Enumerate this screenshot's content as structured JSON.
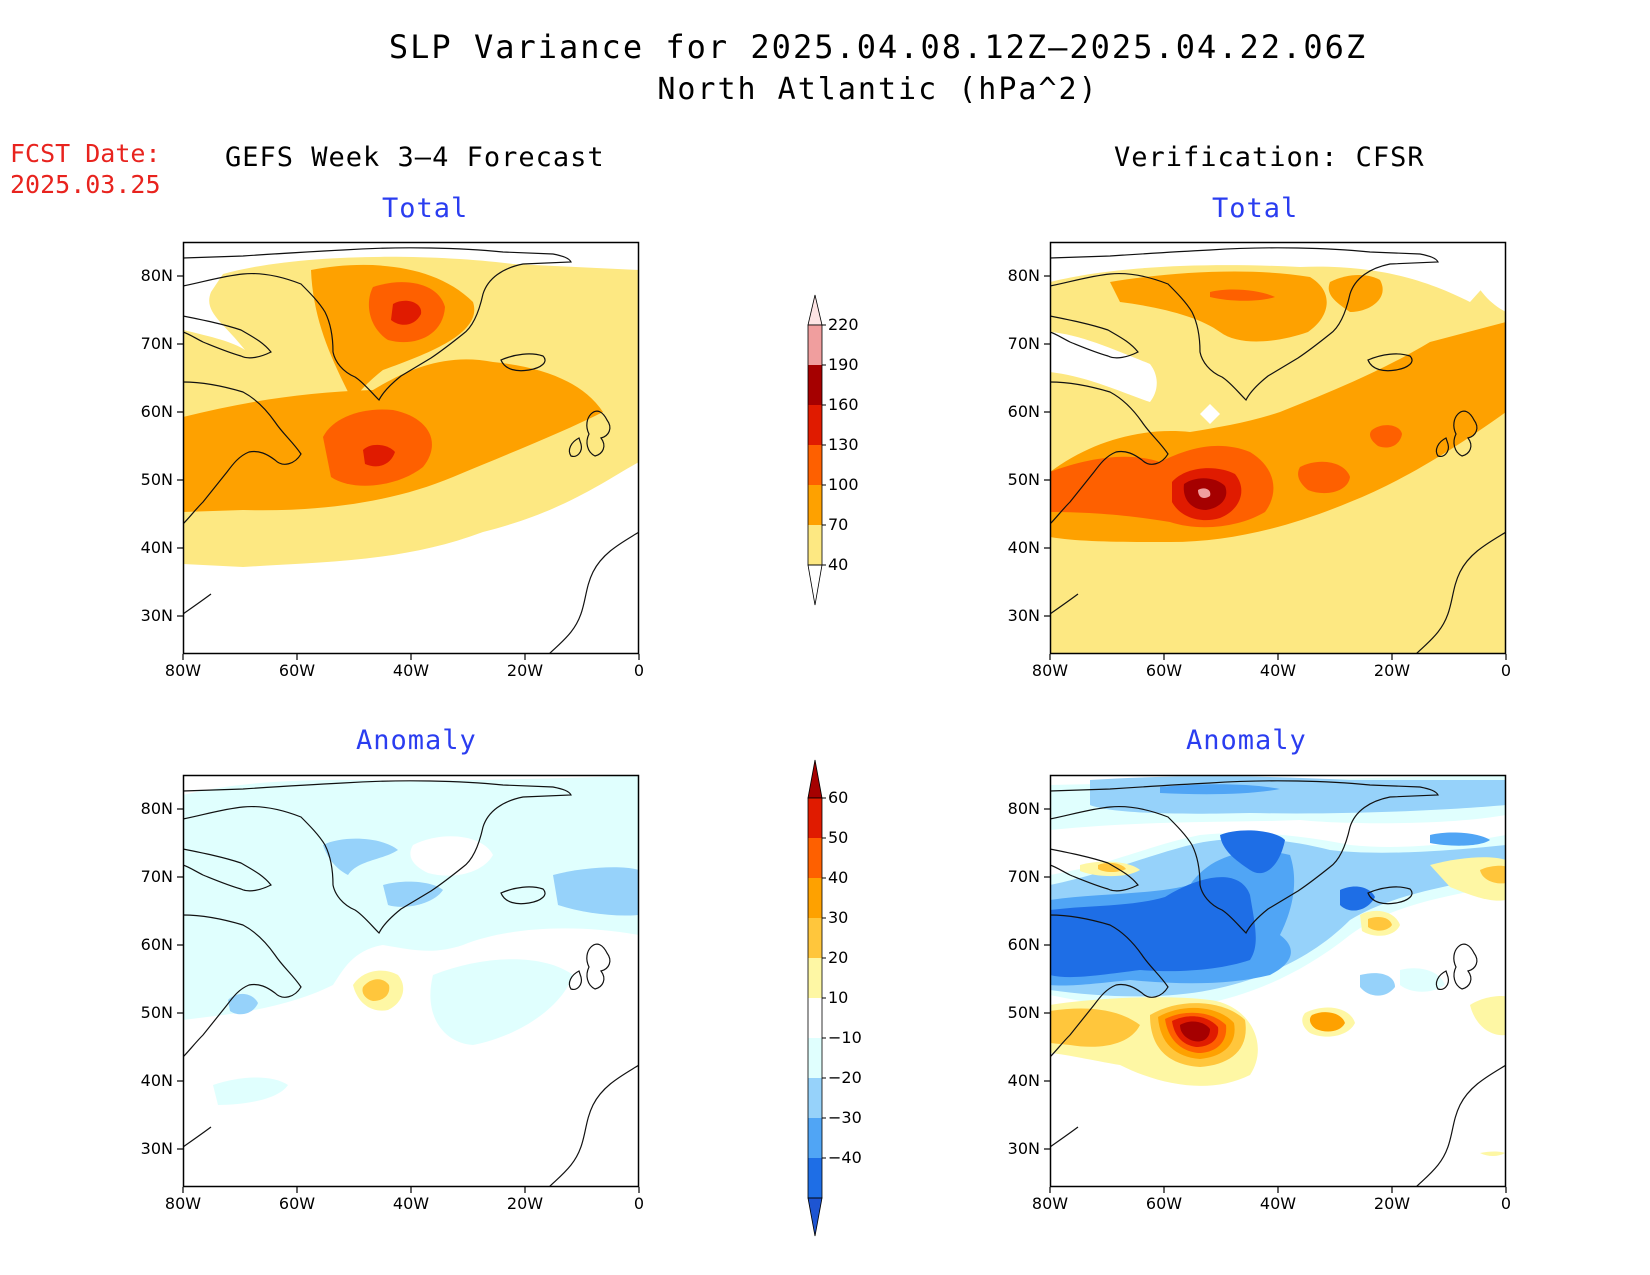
{
  "title_line1": "SLP Variance for 2025.04.08.12Z–2025.04.22.06Z",
  "title_line2": "North Atlantic (hPa^2)",
  "fcst_label": "FCST Date:",
  "fcst_date": "2025.03.25",
  "left_header": "GEFS Week 3–4 Forecast",
  "right_header": "Verification: CFSR",
  "panels": {
    "top_left": "Total",
    "top_right": "Total",
    "bottom_left": "Anomaly",
    "bottom_right": "Anomaly"
  },
  "lat_labels": [
    "80N",
    "70N",
    "60N",
    "50N",
    "40N",
    "30N"
  ],
  "lon_labels": [
    "80W",
    "60W",
    "40W",
    "20W",
    "0"
  ],
  "total_scale": {
    "levels": [
      "40",
      "70",
      "100",
      "130",
      "160",
      "190",
      "220"
    ],
    "colors": [
      "#fde882",
      "#fea100",
      "#fe6000",
      "#e01b00",
      "#a50000",
      "#f09e9e",
      "#fde4e4"
    ]
  },
  "anomaly_scale": {
    "levels": [
      "60",
      "50",
      "40",
      "30",
      "20",
      "10",
      "−10",
      "−20",
      "−30",
      "−40"
    ],
    "colors": [
      "#a50000",
      "#e01b00",
      "#fe6000",
      "#fea100",
      "#ffc63c",
      "#fef7a4",
      "#ffffff",
      "#e0fffe",
      "#96d2fa",
      "#50a5f5",
      "#1e6ee6",
      "#1e55d2"
    ]
  }
}
